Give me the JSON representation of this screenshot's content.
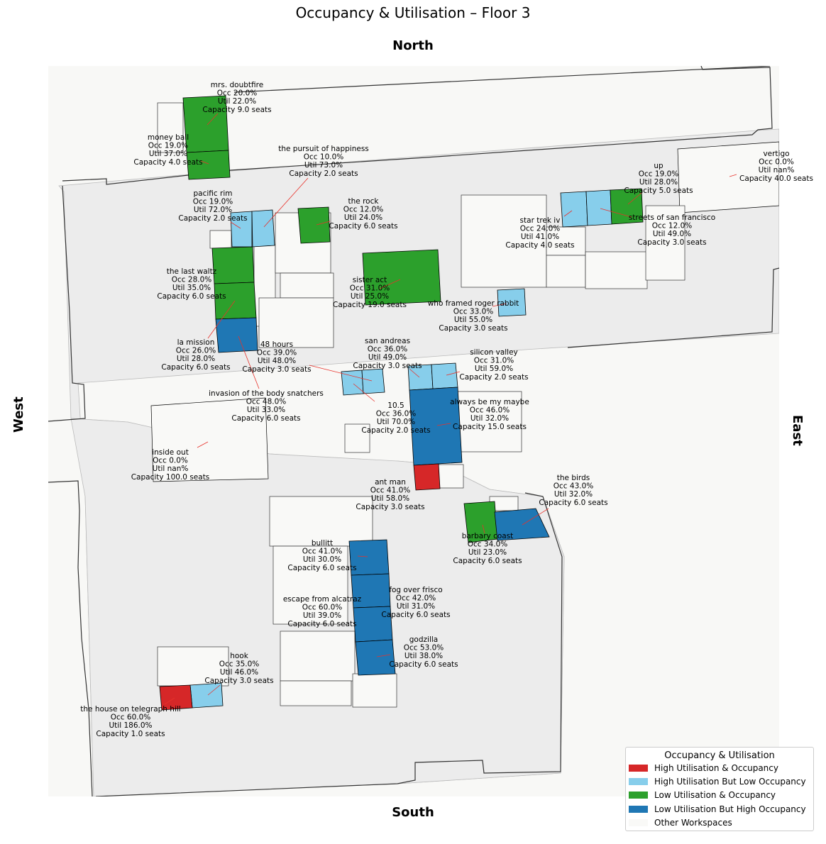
{
  "title": "Occupancy & Utilisation – Floor 3",
  "compass": {
    "north": "North",
    "south": "South",
    "west": "West",
    "east": "East"
  },
  "colors": {
    "high_util_occ": "#d62728",
    "high_util_low_occ": "#87ceeb",
    "low_util_occ": "#2ca02c",
    "low_util_high_occ": "#1f77b4",
    "other": "#f9f9f7",
    "floor": "#ececec",
    "outside": "#f8f8f6",
    "leader": "#e8322b"
  },
  "legend": {
    "title": "Occupancy & Utilisation",
    "items": [
      {
        "label": "High Utilisation & Occupancy",
        "category": "high_util_occ"
      },
      {
        "label": "High Utilisation But Low Occupancy",
        "category": "high_util_low_occ"
      },
      {
        "label": "Low Utilisation & Occupancy",
        "category": "low_util_occ"
      },
      {
        "label": "Low Utilisation But High Occupancy",
        "category": "low_util_high_occ"
      },
      {
        "label": "Other Workspaces",
        "category": "other"
      }
    ]
  },
  "rooms": [
    {
      "name": "mrs. doubtfire",
      "occ": "Occ 20.0%",
      "util": "Util 22.0%",
      "capacity": "Capacity 9.0 seats",
      "category": "low_util_occ"
    },
    {
      "name": "money ball",
      "occ": "Occ 19.0%",
      "util": "Util 37.0%",
      "capacity": "Capacity 4.0 seats",
      "category": "low_util_occ"
    },
    {
      "name": "the pursuit of happiness",
      "occ": "Occ 10.0%",
      "util": "Util 73.0%",
      "capacity": "Capacity 2.0 seats",
      "category": "high_util_low_occ"
    },
    {
      "name": "pacific rim",
      "occ": "Occ 19.0%",
      "util": "Util 72.0%",
      "capacity": "Capacity 2.0 seats",
      "category": "high_util_low_occ"
    },
    {
      "name": "the rock",
      "occ": "Occ 12.0%",
      "util": "Util 24.0%",
      "capacity": "Capacity 6.0 seats",
      "category": "low_util_occ"
    },
    {
      "name": "up",
      "occ": "Occ 19.0%",
      "util": "Util 28.0%",
      "capacity": "Capacity 5.0 seats",
      "category": "low_util_occ"
    },
    {
      "name": "vertigo",
      "occ": "Occ 0.0%",
      "util": "Util nan%",
      "capacity": "Capacity 40.0 seats",
      "category": "other"
    },
    {
      "name": "star trek iv",
      "occ": "Occ 24.0%",
      "util": "Util 41.0%",
      "capacity": "Capacity 4.0 seats",
      "category": "high_util_low_occ"
    },
    {
      "name": "streets of san francisco",
      "occ": "Occ 12.0%",
      "util": "Util 49.0%",
      "capacity": "Capacity 3.0 seats",
      "category": "high_util_low_occ"
    },
    {
      "name": "the last waltz",
      "occ": "Occ 28.0%",
      "util": "Util 35.0%",
      "capacity": "Capacity 6.0 seats",
      "category": "low_util_occ"
    },
    {
      "name": "sister act",
      "occ": "Occ 31.0%",
      "util": "Util 25.0%",
      "capacity": "Capacity 19.0 seats",
      "category": "low_util_occ"
    },
    {
      "name": "who framed roger rabbit",
      "occ": "Occ 33.0%",
      "util": "Util 55.0%",
      "capacity": "Capacity 3.0 seats",
      "category": "high_util_low_occ"
    },
    {
      "name": "la mission",
      "occ": "Occ 26.0%",
      "util": "Util 28.0%",
      "capacity": "Capacity 6.0 seats",
      "category": "low_util_occ"
    },
    {
      "name": "48 hours",
      "occ": "Occ 39.0%",
      "util": "Util 48.0%",
      "capacity": "Capacity 3.0 seats",
      "category": "high_util_low_occ"
    },
    {
      "name": "san andreas",
      "occ": "Occ 36.0%",
      "util": "Util 49.0%",
      "capacity": "Capacity 3.0 seats",
      "category": "high_util_low_occ"
    },
    {
      "name": "silicon valley",
      "occ": "Occ 31.0%",
      "util": "Util 59.0%",
      "capacity": "Capacity 2.0 seats",
      "category": "high_util_low_occ"
    },
    {
      "name": "invasion of the body snatchers",
      "occ": "Occ 48.0%",
      "util": "Util 33.0%",
      "capacity": "Capacity 6.0 seats",
      "category": "low_util_high_occ"
    },
    {
      "name": "10.5",
      "occ": "Occ 36.0%",
      "util": "Util 70.0%",
      "capacity": "Capacity 2.0 seats",
      "category": "high_util_low_occ"
    },
    {
      "name": "always be my maybe",
      "occ": "Occ 46.0%",
      "util": "Util 32.0%",
      "capacity": "Capacity 15.0 seats",
      "category": "low_util_high_occ"
    },
    {
      "name": "inside out",
      "occ": "Occ 0.0%",
      "util": "Util nan%",
      "capacity": "Capacity 100.0 seats",
      "category": "other"
    },
    {
      "name": "ant man",
      "occ": "Occ 41.0%",
      "util": "Util 58.0%",
      "capacity": "Capacity 3.0 seats",
      "category": "high_util_occ"
    },
    {
      "name": "the birds",
      "occ": "Occ 43.0%",
      "util": "Util 32.0%",
      "capacity": "Capacity 6.0 seats",
      "category": "low_util_high_occ"
    },
    {
      "name": "barbary coast",
      "occ": "Occ 34.0%",
      "util": "Util 23.0%",
      "capacity": "Capacity 6.0 seats",
      "category": "low_util_occ"
    },
    {
      "name": "bullitt",
      "occ": "Occ 41.0%",
      "util": "Util 30.0%",
      "capacity": "Capacity 6.0 seats",
      "category": "low_util_high_occ"
    },
    {
      "name": "fog over frisco",
      "occ": "Occ 42.0%",
      "util": "Util 31.0%",
      "capacity": "Capacity 6.0 seats",
      "category": "low_util_high_occ"
    },
    {
      "name": "escape from alcatraz",
      "occ": "Occ 60.0%",
      "util": "Util 39.0%",
      "capacity": "Capacity 6.0 seats",
      "category": "low_util_high_occ"
    },
    {
      "name": "godzilla",
      "occ": "Occ 53.0%",
      "util": "Util 38.0%",
      "capacity": "Capacity 6.0 seats",
      "category": "low_util_high_occ"
    },
    {
      "name": "hook",
      "occ": "Occ 35.0%",
      "util": "Util 46.0%",
      "capacity": "Capacity 3.0 seats",
      "category": "high_util_low_occ"
    },
    {
      "name": "the house on telegraph hill",
      "occ": "Occ 60.0%",
      "util": "Util 186.0%",
      "capacity": "Capacity 1.0 seats",
      "category": "high_util_occ"
    }
  ]
}
